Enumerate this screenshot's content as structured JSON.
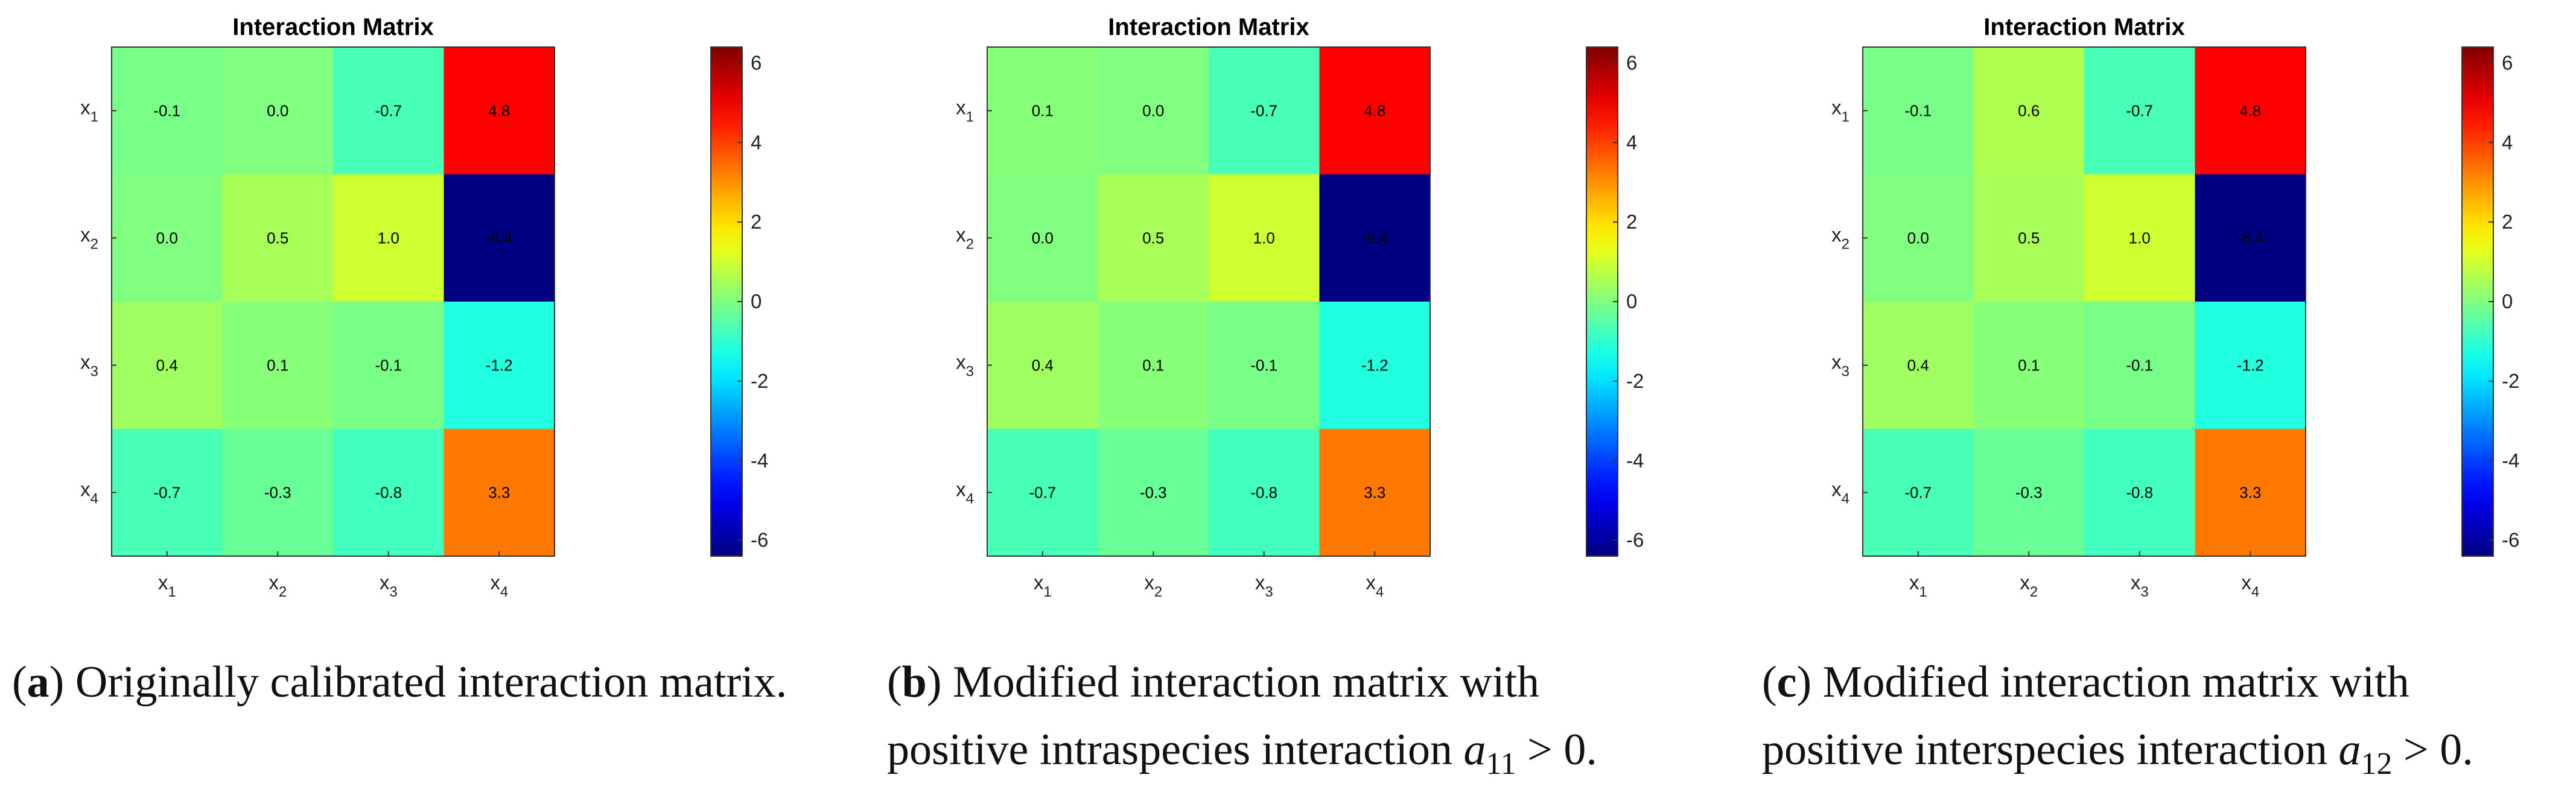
{
  "chart_data": [
    {
      "type": "heatmap",
      "title": "Interaction Matrix",
      "row_labels": [
        [
          "x",
          "1"
        ],
        [
          "x",
          "2"
        ],
        [
          "x",
          "3"
        ],
        [
          "x",
          "4"
        ]
      ],
      "col_labels": [
        [
          "x",
          "1"
        ],
        [
          "x",
          "2"
        ],
        [
          "x",
          "3"
        ],
        [
          "x",
          "4"
        ]
      ],
      "values": [
        [
          -0.1,
          0.0,
          -0.7,
          4.8
        ],
        [
          0.0,
          0.5,
          1.0,
          -6.4
        ],
        [
          0.4,
          0.1,
          -0.1,
          -1.2
        ],
        [
          -0.7,
          -0.3,
          -0.8,
          3.3
        ]
      ],
      "value_labels": [
        [
          "-0.1",
          "0.0",
          "-0.7",
          "4.8"
        ],
        [
          "0.0",
          "0.5",
          "1.0",
          "-6.4"
        ],
        [
          "0.4",
          "0.1",
          "-0.1",
          "-1.2"
        ],
        [
          "-0.7",
          "-0.3",
          "-0.8",
          "3.3"
        ]
      ],
      "clim": [
        -6.4,
        6.4
      ],
      "colorbar_ticks": [
        "6",
        "4",
        "2",
        "0",
        "-2",
        "-4",
        "-6"
      ],
      "colorbar_tick_values": [
        6,
        4,
        2,
        0,
        -2,
        -4,
        -6
      ],
      "colormap": "jet",
      "caption": {
        "letter": "a",
        "text": " Originally calibrated interaction matrix.",
        "math_var": "",
        "math_sub": "",
        "math_rel": ""
      }
    },
    {
      "type": "heatmap",
      "title": "Interaction Matrix",
      "row_labels": [
        [
          "x",
          "1"
        ],
        [
          "x",
          "2"
        ],
        [
          "x",
          "3"
        ],
        [
          "x",
          "4"
        ]
      ],
      "col_labels": [
        [
          "x",
          "1"
        ],
        [
          "x",
          "2"
        ],
        [
          "x",
          "3"
        ],
        [
          "x",
          "4"
        ]
      ],
      "values": [
        [
          0.1,
          0.0,
          -0.7,
          4.8
        ],
        [
          0.0,
          0.5,
          1.0,
          -6.4
        ],
        [
          0.4,
          0.1,
          -0.1,
          -1.2
        ],
        [
          -0.7,
          -0.3,
          -0.8,
          3.3
        ]
      ],
      "value_labels": [
        [
          "0.1",
          "0.0",
          "-0.7",
          "4.8"
        ],
        [
          "0.0",
          "0.5",
          "1.0",
          "-6.4"
        ],
        [
          "0.4",
          "0.1",
          "-0.1",
          "-1.2"
        ],
        [
          "-0.7",
          "-0.3",
          "-0.8",
          "3.3"
        ]
      ],
      "clim": [
        -6.4,
        6.4
      ],
      "colorbar_ticks": [
        "6",
        "4",
        "2",
        "0",
        "-2",
        "-4",
        "-6"
      ],
      "colorbar_tick_values": [
        6,
        4,
        2,
        0,
        -2,
        -4,
        -6
      ],
      "colormap": "jet",
      "caption": {
        "letter": "b",
        "text": " Modified interaction matrix with positive intraspecies interaction ",
        "math_var": "a",
        "math_sub": "11",
        "math_rel": " > 0."
      }
    },
    {
      "type": "heatmap",
      "title": "Interaction Matrix",
      "row_labels": [
        [
          "x",
          "1"
        ],
        [
          "x",
          "2"
        ],
        [
          "x",
          "3"
        ],
        [
          "x",
          "4"
        ]
      ],
      "col_labels": [
        [
          "x",
          "1"
        ],
        [
          "x",
          "2"
        ],
        [
          "x",
          "3"
        ],
        [
          "x",
          "4"
        ]
      ],
      "values": [
        [
          -0.1,
          0.6,
          -0.7,
          4.8
        ],
        [
          0.0,
          0.5,
          1.0,
          -6.4
        ],
        [
          0.4,
          0.1,
          -0.1,
          -1.2
        ],
        [
          -0.7,
          -0.3,
          -0.8,
          3.3
        ]
      ],
      "value_labels": [
        [
          "-0.1",
          "0.6",
          "-0.7",
          "4.8"
        ],
        [
          "0.0",
          "0.5",
          "1.0",
          "-6.4"
        ],
        [
          "0.4",
          "0.1",
          "-0.1",
          "-1.2"
        ],
        [
          "-0.7",
          "-0.3",
          "-0.8",
          "3.3"
        ]
      ],
      "clim": [
        -6.4,
        6.4
      ],
      "colorbar_ticks": [
        "6",
        "4",
        "2",
        "0",
        "-2",
        "-4",
        "-6"
      ],
      "colorbar_tick_values": [
        6,
        4,
        2,
        0,
        -2,
        -4,
        -6
      ],
      "colormap": "jet",
      "caption": {
        "letter": "c",
        "text": " Modified interaction matrix with positive interspecies interaction ",
        "math_var": "a",
        "math_sub": "12",
        "math_rel": " > 0."
      }
    }
  ]
}
